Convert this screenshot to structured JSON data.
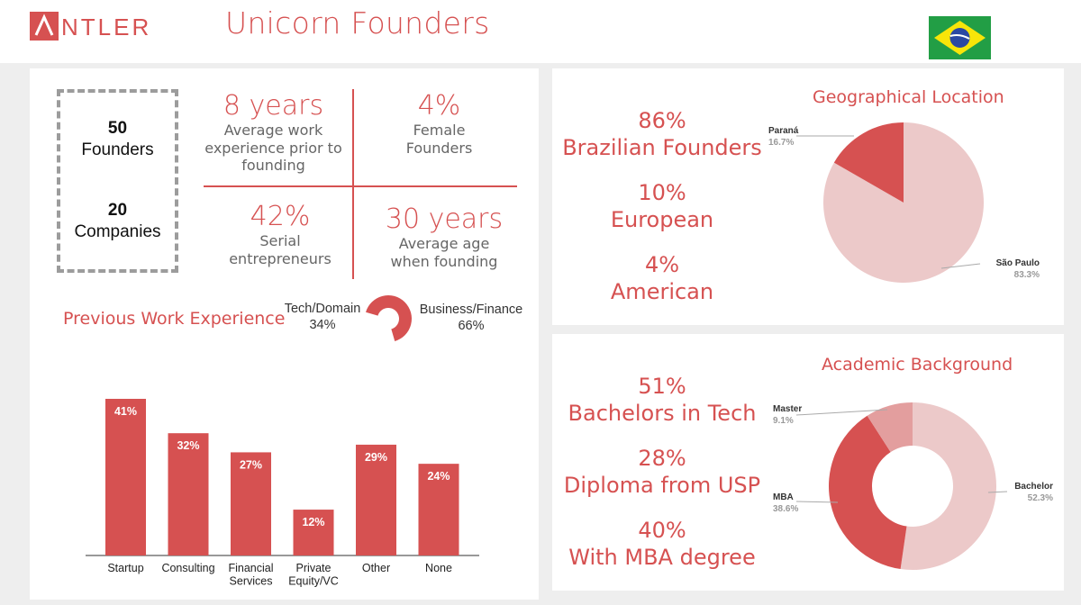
{
  "header": {
    "logo_text": "ANTLER",
    "title": "Unicorn Founders",
    "flag_icon": "brazil-flag-icon"
  },
  "summary": {
    "founders_count": "50",
    "founders_label": "Founders",
    "companies_count": "20",
    "companies_label": "Companies"
  },
  "stats": [
    {
      "value": "8 years",
      "label_lines": [
        "Average work",
        "experience prior to",
        "founding"
      ]
    },
    {
      "value": "4%",
      "label_lines": [
        "Female",
        "Founders"
      ]
    },
    {
      "value": "42%",
      "label_lines": [
        "Serial",
        "entrepreneurs"
      ]
    },
    {
      "value": "30 years",
      "label_lines": [
        "Average age",
        "when founding"
      ]
    }
  ],
  "previous_work": {
    "title": "Previous Work Experience",
    "tech_label": "Tech/Domain",
    "tech_pct": "34%",
    "business_label": "Business/Finance",
    "business_pct": "66%"
  },
  "geography": {
    "stats": [
      {
        "value": "86%",
        "label": "Brazilian Founders"
      },
      {
        "value": "10%",
        "label": "European"
      },
      {
        "value": "4%",
        "label": "American"
      }
    ],
    "chart_title": "Geographical Location"
  },
  "academic": {
    "stats": [
      {
        "value": "51%",
        "label": "Bachelors in Tech"
      },
      {
        "value": "28%",
        "label": "Diploma from USP"
      },
      {
        "value": "40%",
        "label": "With MBA degree"
      }
    ],
    "chart_title": "Academic Background"
  },
  "colors": {
    "accent": "#d65151",
    "light": "#ecc9c9",
    "mid": "#e39e9e",
    "flag_green": "#229e45",
    "flag_yellow": "#f8e509",
    "flag_blue": "#2b49a3"
  },
  "chart_data": [
    {
      "type": "bar",
      "title": "",
      "categories": [
        "Startup",
        "Consulting",
        "Financial Services",
        "Private Equity/VC",
        "Other",
        "None"
      ],
      "category_lines": [
        [
          "Startup"
        ],
        [
          "Consulting"
        ],
        [
          "Financial",
          "Services"
        ],
        [
          "Private",
          "Equity/VC"
        ],
        [
          "Other"
        ],
        [
          "None"
        ]
      ],
      "values": [
        41,
        32,
        27,
        12,
        29,
        24
      ],
      "value_labels": [
        "41%",
        "32%",
        "27%",
        "12%",
        "29%",
        "24%"
      ],
      "ylim": [
        0,
        41
      ],
      "xlabel": "",
      "ylabel": "",
      "grid": false
    },
    {
      "type": "pie",
      "subtype": "donut",
      "title": "",
      "slices": [
        {
          "name": "Tech/Domain",
          "value": 34
        },
        {
          "name": "Business/Finance",
          "value": 66
        }
      ]
    },
    {
      "type": "pie",
      "title": "Geographical Location",
      "slices": [
        {
          "name": "Paraná",
          "value": 16.7,
          "label": "16.7%"
        },
        {
          "name": "São Paulo",
          "value": 83.3,
          "label": "83.3%"
        }
      ]
    },
    {
      "type": "pie",
      "subtype": "donut",
      "title": "Academic Background",
      "slices": [
        {
          "name": "Master",
          "value": 9.1,
          "label": "9.1%"
        },
        {
          "name": "MBA",
          "value": 38.6,
          "label": "38.6%"
        },
        {
          "name": "Bachelor",
          "value": 52.3,
          "label": "52.3%"
        }
      ]
    }
  ]
}
